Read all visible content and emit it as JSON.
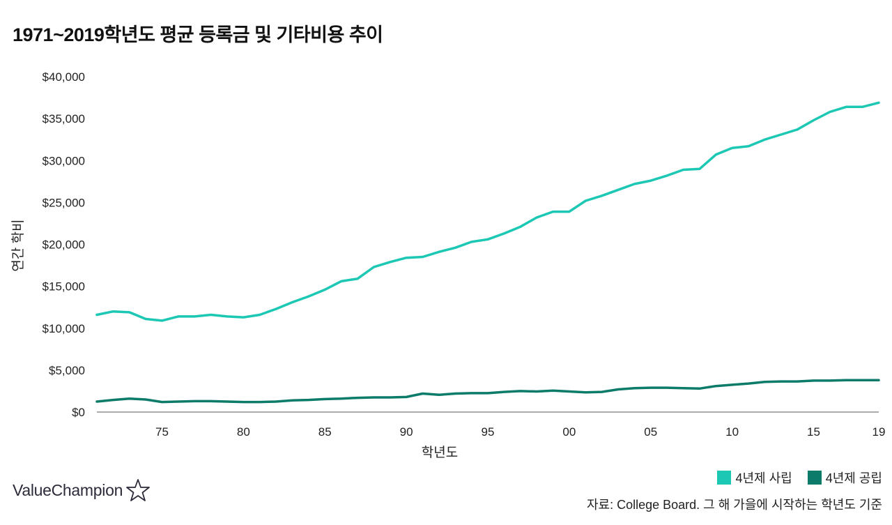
{
  "title": "1971~2019학년도 평균 등록금 및 기타비용 추이",
  "brand": {
    "name": "ValueChampion"
  },
  "source": "자료: College Board. 그 해 가을에 시작하는 학년도 기준",
  "colors": {
    "private": "#1cc8b4",
    "public": "#0c7b6a"
  },
  "chart_data": {
    "type": "line",
    "xlabel": "학년도",
    "ylabel": "연간 학비",
    "ylim": [
      0,
      40000
    ],
    "xlim": [
      1971,
      2019
    ],
    "grid": false,
    "legend_position": "bottom-right",
    "y_ticks": [
      {
        "value": 0,
        "label": "$0"
      },
      {
        "value": 5000,
        "label": "$5,000"
      },
      {
        "value": 10000,
        "label": "$10,000"
      },
      {
        "value": 15000,
        "label": "$15,000"
      },
      {
        "value": 20000,
        "label": "$20,000"
      },
      {
        "value": 25000,
        "label": "$25,000"
      },
      {
        "value": 30000,
        "label": "$30,000"
      },
      {
        "value": 35000,
        "label": "$35,000"
      },
      {
        "value": 40000,
        "label": "$40,000"
      }
    ],
    "x_ticks": [
      {
        "value": 1975,
        "label": "75"
      },
      {
        "value": 1980,
        "label": "80"
      },
      {
        "value": 1985,
        "label": "85"
      },
      {
        "value": 1990,
        "label": "90"
      },
      {
        "value": 1995,
        "label": "95"
      },
      {
        "value": 2000,
        "label": "00"
      },
      {
        "value": 2005,
        "label": "05"
      },
      {
        "value": 2010,
        "label": "10"
      },
      {
        "value": 2015,
        "label": "15"
      },
      {
        "value": 2019,
        "label": "19"
      }
    ],
    "x": [
      1971,
      1972,
      1973,
      1974,
      1975,
      1976,
      1977,
      1978,
      1979,
      1980,
      1981,
      1982,
      1983,
      1984,
      1985,
      1986,
      1987,
      1988,
      1989,
      1990,
      1991,
      1992,
      1993,
      1994,
      1995,
      1996,
      1997,
      1998,
      1999,
      2000,
      2001,
      2002,
      2003,
      2004,
      2005,
      2006,
      2007,
      2008,
      2009,
      2010,
      2011,
      2012,
      2013,
      2014,
      2015,
      2016,
      2017,
      2018,
      2019
    ],
    "series": [
      {
        "name": "4년제 사립",
        "key": "private",
        "values": [
          11600,
          12000,
          11900,
          11100,
          10900,
          11400,
          11400,
          11600,
          11400,
          11300,
          11600,
          12300,
          13100,
          13800,
          14600,
          15600,
          15900,
          17300,
          17900,
          18400,
          18500,
          19100,
          19600,
          20300,
          20600,
          21300,
          22100,
          23200,
          23900,
          23900,
          25200,
          25800,
          26500,
          27200,
          27600,
          28200,
          28900,
          29000,
          30700,
          31500,
          31700,
          32500,
          33100,
          33700,
          34800,
          35800,
          36400,
          36400,
          36900
        ]
      },
      {
        "name": "4년제 공립",
        "key": "public",
        "values": [
          1250,
          1450,
          1600,
          1500,
          1200,
          1250,
          1300,
          1300,
          1250,
          1200,
          1200,
          1250,
          1400,
          1450,
          1550,
          1600,
          1700,
          1750,
          1750,
          1800,
          2200,
          2050,
          2200,
          2250,
          2250,
          2400,
          2500,
          2450,
          2550,
          2450,
          2350,
          2400,
          2700,
          2850,
          2900,
          2900,
          2850,
          2800,
          3100,
          3250,
          3400,
          3600,
          3650,
          3650,
          3750,
          3750,
          3800,
          3800,
          3800
        ]
      }
    ]
  }
}
